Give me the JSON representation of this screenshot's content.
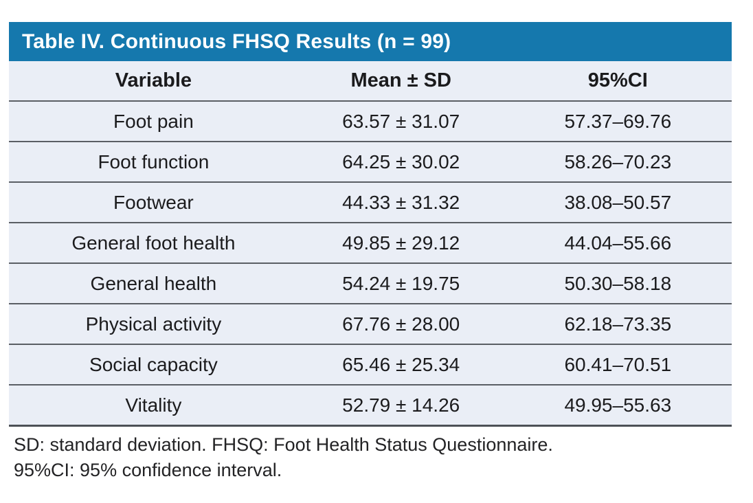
{
  "table": {
    "title": "Table IV. Continuous FHSQ Results (n = 99)",
    "columns": [
      "Variable",
      "Mean ± SD",
      "95%CI"
    ],
    "rows": [
      [
        "Foot pain",
        "63.57 ± 31.07",
        "57.37–69.76"
      ],
      [
        "Foot function",
        "64.25 ± 30.02",
        "58.26–70.23"
      ],
      [
        "Footwear",
        "44.33 ± 31.32",
        "38.08–50.57"
      ],
      [
        "General foot health",
        "49.85 ± 29.12",
        "44.04–55.66"
      ],
      [
        "General health",
        "54.24 ± 19.75",
        "50.30–58.18"
      ],
      [
        "Physical activity",
        "67.76 ± 28.00",
        "62.18–73.35"
      ],
      [
        "Social capacity",
        "65.46 ± 25.34",
        "60.41–70.51"
      ],
      [
        "Vitality",
        "52.79 ± 14.26",
        "49.95–55.63"
      ]
    ],
    "footnotes": [
      "SD: standard deviation. FHSQ: Foot Health Status Questionnaire.",
      "95%CI: 95% confidence interval."
    ]
  },
  "chart_data": {
    "type": "table",
    "title": "Table IV. Continuous FHSQ Results (n = 99)",
    "columns": [
      "Variable",
      "Mean ± SD",
      "95%CI"
    ],
    "rows": [
      {
        "variable": "Foot pain",
        "mean": 63.57,
        "sd": 31.07,
        "ci_low": 57.37,
        "ci_high": 69.76
      },
      {
        "variable": "Foot function",
        "mean": 64.25,
        "sd": 30.02,
        "ci_low": 58.26,
        "ci_high": 70.23
      },
      {
        "variable": "Footwear",
        "mean": 44.33,
        "sd": 31.32,
        "ci_low": 38.08,
        "ci_high": 50.57
      },
      {
        "variable": "General foot health",
        "mean": 49.85,
        "sd": 29.12,
        "ci_low": 44.04,
        "ci_high": 55.66
      },
      {
        "variable": "General health",
        "mean": 54.24,
        "sd": 19.75,
        "ci_low": 50.3,
        "ci_high": 58.18
      },
      {
        "variable": "Physical activity",
        "mean": 67.76,
        "sd": 28.0,
        "ci_low": 62.18,
        "ci_high": 73.35
      },
      {
        "variable": "Social capacity",
        "mean": 65.46,
        "sd": 25.34,
        "ci_low": 60.41,
        "ci_high": 70.51
      },
      {
        "variable": "Vitality",
        "mean": 52.79,
        "sd": 14.26,
        "ci_low": 49.95,
        "ci_high": 55.63
      }
    ],
    "n": 99
  },
  "colors": {
    "title_bar": "#1578ad",
    "row_bg": "#eaeef6",
    "divider": "#5a5e64",
    "divider_strong": "#4d5157",
    "text": "#1b1b1d"
  }
}
